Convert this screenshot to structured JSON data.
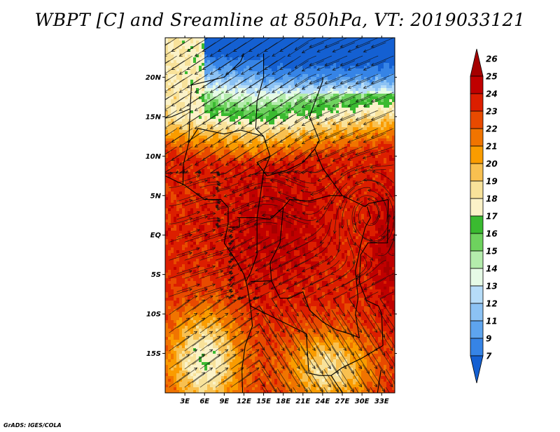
{
  "title": "WBPT [C] and Sreamline at 850hPa, VT: 2019033121",
  "credit": "GrADS: IGES/COLA",
  "map": {
    "lon_range": [
      0,
      35
    ],
    "lat_range": [
      -20,
      25
    ],
    "lat_ticks": [
      {
        "value": 20,
        "label": "20N"
      },
      {
        "value": 15,
        "label": "15N"
      },
      {
        "value": 10,
        "label": "10N"
      },
      {
        "value": 5,
        "label": "5N"
      },
      {
        "value": 0,
        "label": "EQ"
      },
      {
        "value": -5,
        "label": "5S"
      },
      {
        "value": -10,
        "label": "10S"
      },
      {
        "value": -15,
        "label": "15S"
      }
    ],
    "lon_ticks": [
      {
        "value": 3,
        "label": "3E"
      },
      {
        "value": 6,
        "label": "6E"
      },
      {
        "value": 9,
        "label": "9E"
      },
      {
        "value": 12,
        "label": "12E"
      },
      {
        "value": 15,
        "label": "15E"
      },
      {
        "value": 18,
        "label": "18E"
      },
      {
        "value": 21,
        "label": "21E"
      },
      {
        "value": 24,
        "label": "24E"
      },
      {
        "value": 27,
        "label": "27E"
      },
      {
        "value": 30,
        "label": "30E"
      },
      {
        "value": 33,
        "label": "33E"
      }
    ]
  },
  "colorbar": {
    "levels": [
      {
        "label": "26",
        "color": "#a50000"
      },
      {
        "label": "25",
        "color": "#c00000"
      },
      {
        "label": "24",
        "color": "#dc1e00"
      },
      {
        "label": "23",
        "color": "#e84a00"
      },
      {
        "label": "22",
        "color": "#f07400"
      },
      {
        "label": "21",
        "color": "#fa9c00"
      },
      {
        "label": "20",
        "color": "#f8c050"
      },
      {
        "label": "19",
        "color": "#f8e29a"
      },
      {
        "label": "18",
        "color": "#fbf2c8"
      },
      {
        "label": "17",
        "color": "#3aba30"
      },
      {
        "label": "16",
        "color": "#6ed25e"
      },
      {
        "label": "15",
        "color": "#b4ecac"
      },
      {
        "label": "14",
        "color": "#e6fae6"
      },
      {
        "label": "13",
        "color": "#b6dcf8"
      },
      {
        "label": "12",
        "color": "#8cc2f4"
      },
      {
        "label": "11",
        "color": "#5ea4ee"
      },
      {
        "label": "9",
        "color": "#3684e6"
      },
      {
        "label": "7",
        "color": "#1460d2"
      }
    ]
  }
}
